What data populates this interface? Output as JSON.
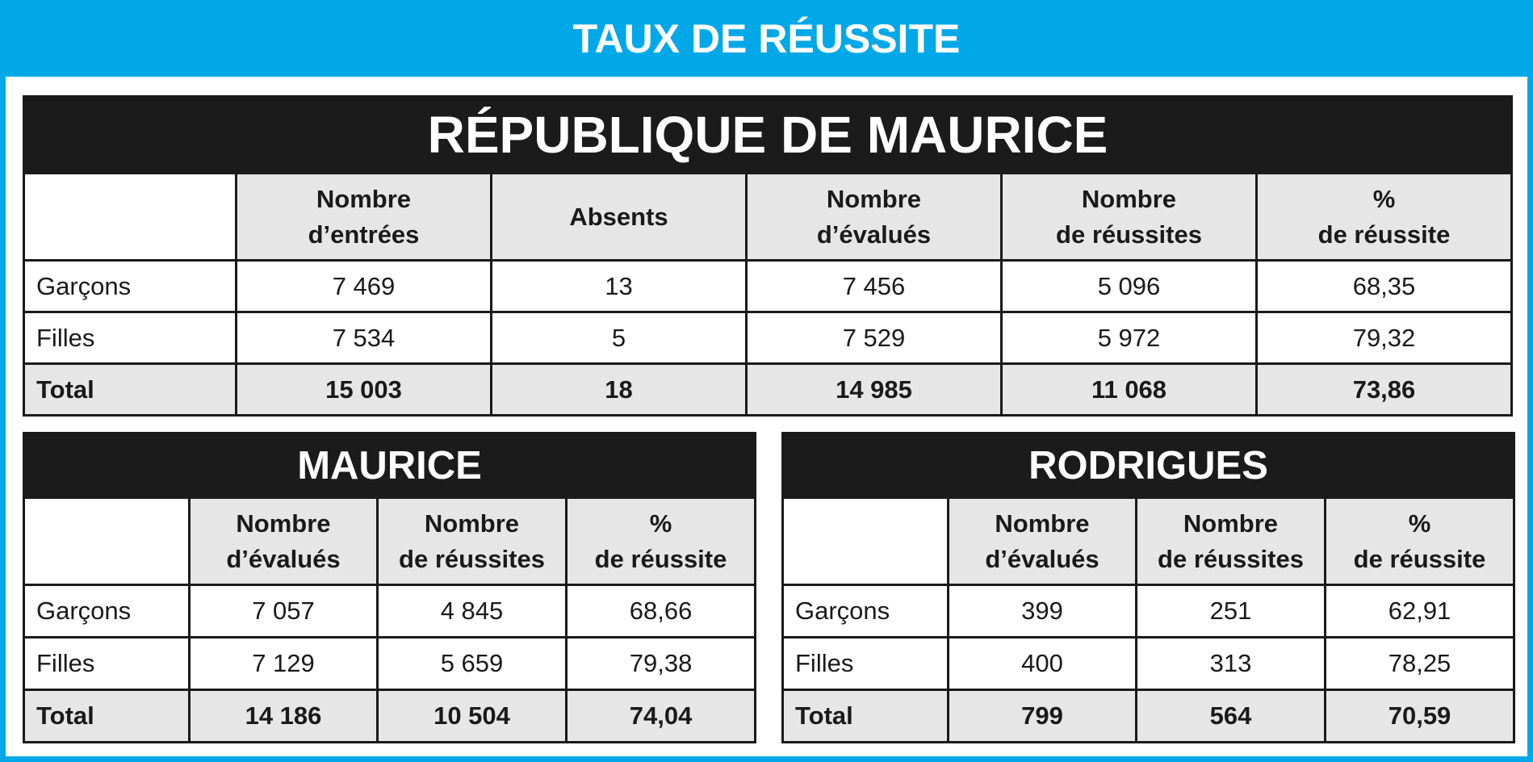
{
  "banner": {
    "title": "TAUX DE RÉUSSITE"
  },
  "colors": {
    "banner": "#00a8e8",
    "title_bar": "#1c1b1b",
    "header_fill": "#e6e6e6"
  },
  "republique": {
    "title": "RÉPUBLIQUE DE MAURICE",
    "headers": [
      "Nombre\nd’entrées",
      "Absents",
      "Nombre\nd’évalués",
      "Nombre\nde réussites",
      "%\nde réussite"
    ],
    "rows": [
      {
        "label": "Garçons",
        "values": [
          "7 469",
          "13",
          "7 456",
          "5 096",
          "68,35"
        ]
      },
      {
        "label": "Filles",
        "values": [
          "7 534",
          "5",
          "7 529",
          "5 972",
          "79,32"
        ]
      },
      {
        "label": "Total",
        "values": [
          "15 003",
          "18",
          "14 985",
          "11 068",
          "73,86"
        ]
      }
    ]
  },
  "maurice": {
    "title": "MAURICE",
    "headers": [
      "Nombre\nd’évalués",
      "Nombre\nde réussites",
      "%\nde réussite"
    ],
    "rows": [
      {
        "label": "Garçons",
        "values": [
          "7 057",
          "4 845",
          "68,66"
        ]
      },
      {
        "label": "Filles",
        "values": [
          "7 129",
          "5 659",
          "79,38"
        ]
      },
      {
        "label": "Total",
        "values": [
          "14 186",
          "10 504",
          "74,04"
        ]
      }
    ]
  },
  "rodrigues": {
    "title": "RODRIGUES",
    "headers": [
      "Nombre\nd’évalués",
      "Nombre\nde réussites",
      "%\nde réussite"
    ],
    "rows": [
      {
        "label": "Garçons",
        "values": [
          "399",
          "251",
          "62,91"
        ]
      },
      {
        "label": "Filles",
        "values": [
          "400",
          "313",
          "78,25"
        ]
      },
      {
        "label": "Total",
        "values": [
          "799",
          "564",
          "70,59"
        ]
      }
    ]
  }
}
